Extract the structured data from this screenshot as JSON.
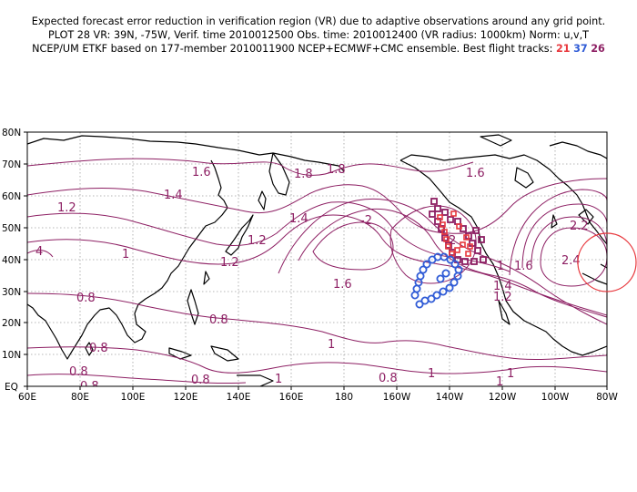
{
  "header": {
    "line1": "Expected forecast error reduction in verification region (VR) due to adaptive observations around any grid point.",
    "line2": "PLOT 28 VR: 39N, -75W, Verif. time 2010012500 Obs. time: 2010012400 (VR radius: 1000km) Norm: u,v,T",
    "line3_prefix": "NCEP/UM ETKF based on 177-member 2010011900 NCEP+ECMWF+CMC ensemble. Best flight tracks:",
    "track_a": "21",
    "track_b": "37",
    "track_c": "26"
  },
  "map": {
    "lat_labels": [
      "80N",
      "70N",
      "60N",
      "50N",
      "40N",
      "30N",
      "20N",
      "10N",
      "EQ"
    ],
    "lon_labels": [
      "60E",
      "80E",
      "100E",
      "120E",
      "140E",
      "160E",
      "180",
      "160W",
      "140W",
      "120W",
      "100W",
      "80W"
    ],
    "contour_labels": [
      "1.6",
      "1.8",
      "1.8",
      "1.6",
      "1.4",
      "1.2",
      "1.4",
      "1.2",
      "1",
      "1.2",
      "-2",
      "1.6",
      "1.4",
      "1.2",
      "1.6",
      "2.2",
      "2.4",
      "4",
      "1",
      "0.8",
      "0.8",
      "0.8",
      "0.8",
      "0.8",
      "1",
      "1",
      "0.8",
      "1",
      "0.8",
      "1",
      "1",
      "2"
    ],
    "colors": {
      "contour": "#8d1f63",
      "track_21": "#e8383d",
      "track_37": "#2f5bd6",
      "track_26": "#8d1f63",
      "verification_circle": "#e8383d",
      "coast": "#000000"
    }
  }
}
